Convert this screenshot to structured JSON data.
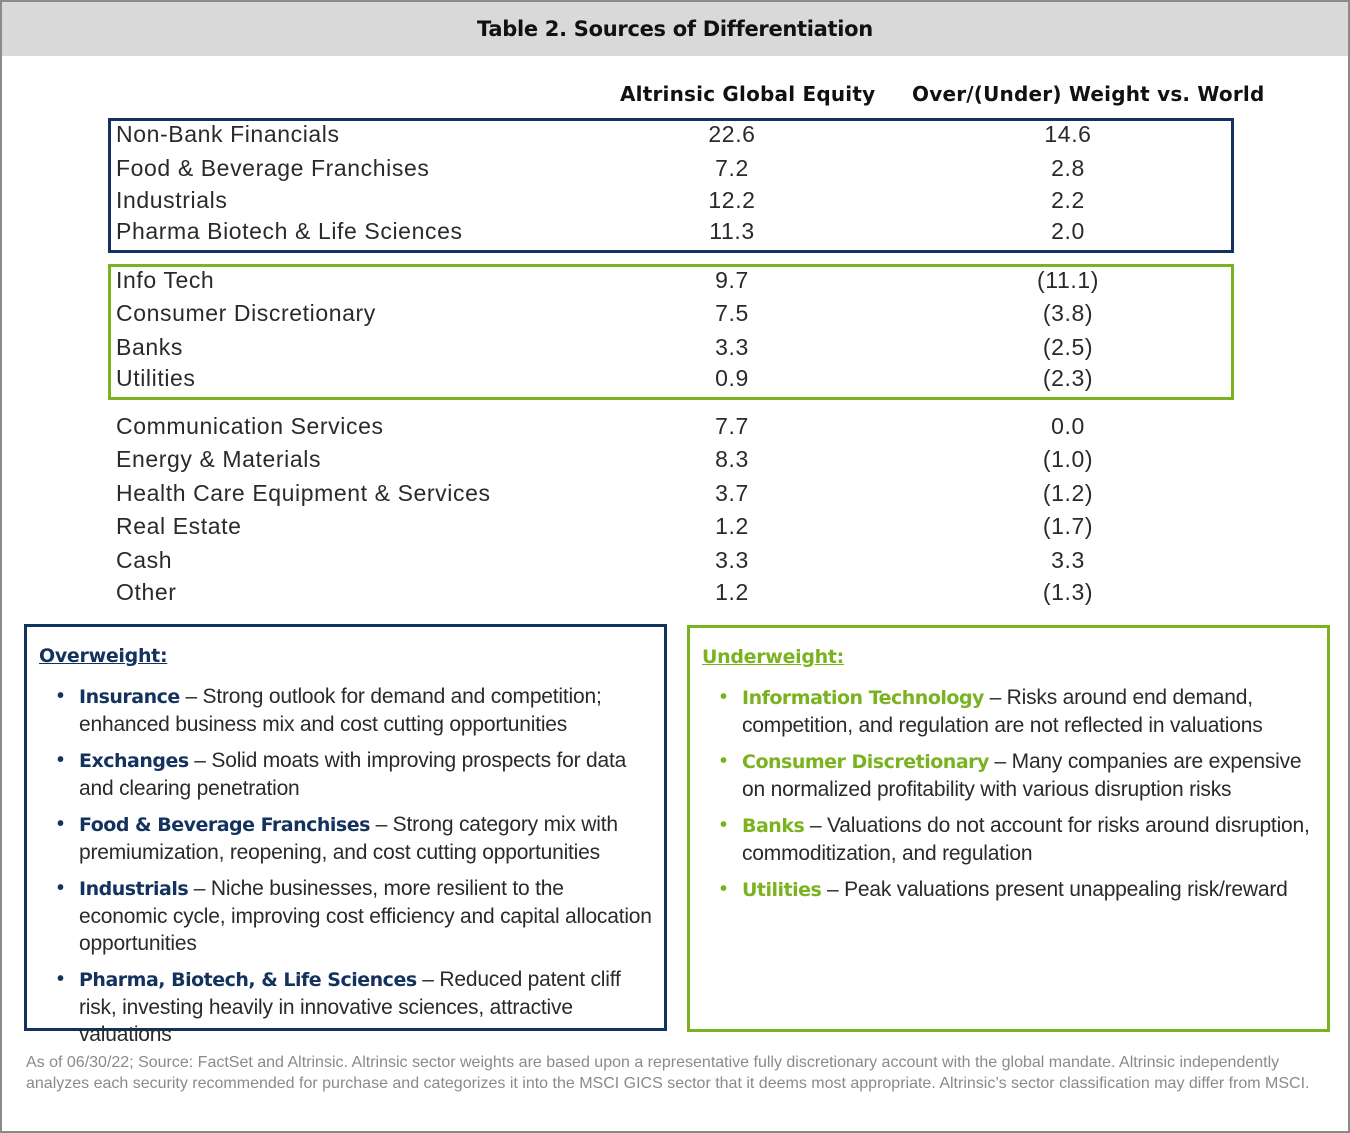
{
  "title": "Table 2. Sources of Differentiation",
  "columns": {
    "portfolio": "Altrinsic Global Equity",
    "relative": "Over/(Under) Weight vs. World"
  },
  "overweight_rows": [
    {
      "sector": "Non-Bank Financials",
      "weight": "22.6",
      "relative": "14.6"
    },
    {
      "sector": "Food & Beverage Franchises",
      "weight": "7.2",
      "relative": "2.8"
    },
    {
      "sector": "Industrials",
      "weight": "12.2",
      "relative": "2.2"
    },
    {
      "sector": "Pharma Biotech & Life Sciences",
      "weight": "11.3",
      "relative": "2.0"
    }
  ],
  "underweight_rows": [
    {
      "sector": "Info Tech",
      "weight": "9.7",
      "relative": "(11.1)"
    },
    {
      "sector": "Consumer Discretionary",
      "weight": "7.5",
      "relative": "(3.8)"
    },
    {
      "sector": "Banks",
      "weight": "3.3",
      "relative": "(2.5)"
    },
    {
      "sector": "Utilities",
      "weight": "0.9",
      "relative": "(2.3)"
    }
  ],
  "other_rows": [
    {
      "sector": "Communication Services",
      "weight": "7.7",
      "relative": "0.0"
    },
    {
      "sector": "Energy & Materials",
      "weight": "8.3",
      "relative": "(1.0)"
    },
    {
      "sector": "Health Care Equipment & Services",
      "weight": "3.7",
      "relative": "(1.2)"
    },
    {
      "sector": "Real Estate",
      "weight": "1.2",
      "relative": "(1.7)"
    },
    {
      "sector": "Cash",
      "weight": "3.3",
      "relative": "3.3"
    },
    {
      "sector": "Other",
      "weight": "1.2",
      "relative": "(1.3)"
    }
  ],
  "overweight_panel": {
    "heading": "Overweight:",
    "items": [
      {
        "term": "Insurance",
        "text": " – Strong outlook for demand and competition; enhanced business mix and cost cutting opportunities"
      },
      {
        "term": "Exchanges",
        "text": " – Solid moats with improving prospects for data and clearing penetration"
      },
      {
        "term": "Food & Beverage Franchises",
        "text": " – Strong category mix with premiumization, reopening, and cost cutting opportunities"
      },
      {
        "term": "Industrials",
        "text": "  – Niche businesses, more resilient to the economic cycle, improving cost efficiency and capital allocation opportunities"
      },
      {
        "term": "Pharma, Biotech, & Life Sciences",
        "text": " – Reduced patent cliff risk, investing heavily in innovative sciences, attractive valuations"
      }
    ]
  },
  "underweight_panel": {
    "heading": "Underweight:",
    "items": [
      {
        "term": "Information Technology",
        "text": " – Risks around end demand, competition, and regulation are not reflected in valuations"
      },
      {
        "term": "Consumer Discretionary",
        "text": " – Many companies are expensive on normalized profitability with various disruption risks"
      },
      {
        "term": "Banks",
        "text": " – Valuations do not account for risks around disruption, commoditization, and regulation"
      },
      {
        "term": "Utilities",
        "text": "  –  Peak valuations present unappealing risk/reward"
      }
    ]
  },
  "footnote": "As of 06/30/22; Source: FactSet and Altrinsic.  Altrinsic sector weights are based upon a representative fully discretionary account with the global mandate. Altrinsic independently analyzes each security recommended for purchase and categorizes it into the MSCI GICS sector that it deems most appropriate. Altrinsic’s sector classification may differ from MSCI.",
  "colors": {
    "navy": "#14325e",
    "green": "#7ab31f",
    "title_bar": "#d9d9d9"
  }
}
